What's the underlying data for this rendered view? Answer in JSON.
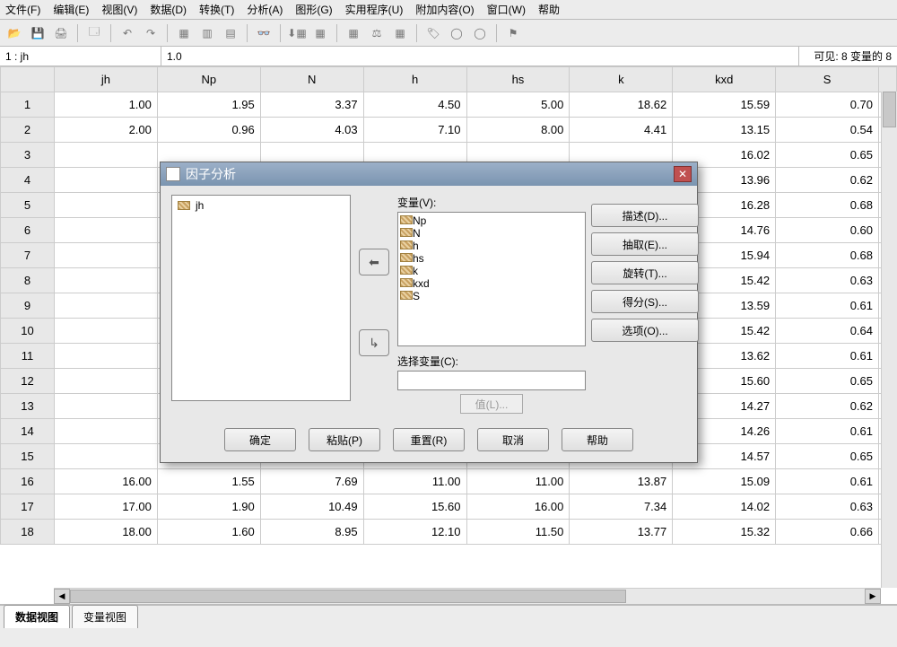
{
  "menu": [
    "文件(F)",
    "编辑(E)",
    "视图(V)",
    "数据(D)",
    "转换(T)",
    "分析(A)",
    "图形(G)",
    "实用程序(U)",
    "附加内容(O)",
    "窗口(W)",
    "帮助"
  ],
  "infobar": {
    "cellref": "1 : jh",
    "cellval": "1.0",
    "visible": "可见: 8 变量的 8"
  },
  "columns": [
    "jh",
    "Np",
    "N",
    "h",
    "hs",
    "k",
    "kxd",
    "S"
  ],
  "col_corner_width": 60,
  "rows": [
    {
      "n": 1,
      "v": [
        "1.00",
        "1.95",
        "3.37",
        "4.50",
        "5.00",
        "18.62",
        "15.59",
        "0.70"
      ]
    },
    {
      "n": 2,
      "v": [
        "2.00",
        "0.96",
        "4.03",
        "7.10",
        "8.00",
        "4.41",
        "13.15",
        "0.54"
      ]
    },
    {
      "n": 3,
      "v": [
        "",
        "",
        "",
        "",
        "",
        "",
        "16.02",
        "0.65"
      ]
    },
    {
      "n": 4,
      "v": [
        "",
        "",
        "",
        "",
        "",
        "",
        "13.96",
        "0.62"
      ]
    },
    {
      "n": 5,
      "v": [
        "",
        "",
        "",
        "",
        "",
        "",
        "16.28",
        "0.68"
      ]
    },
    {
      "n": 6,
      "v": [
        "",
        "",
        "",
        "",
        "",
        "",
        "14.76",
        "0.60"
      ]
    },
    {
      "n": 7,
      "v": [
        "",
        "",
        "",
        "",
        "",
        "",
        "15.94",
        "0.68"
      ]
    },
    {
      "n": 8,
      "v": [
        "",
        "",
        "",
        "",
        "",
        "",
        "15.42",
        "0.63"
      ]
    },
    {
      "n": 9,
      "v": [
        "",
        "",
        "",
        "",
        "",
        "",
        "13.59",
        "0.61"
      ]
    },
    {
      "n": 10,
      "v": [
        "",
        "",
        "",
        "",
        "",
        "",
        "15.42",
        "0.64"
      ]
    },
    {
      "n": 11,
      "v": [
        "",
        "",
        "",
        "",
        "",
        "",
        "13.62",
        "0.61"
      ]
    },
    {
      "n": 12,
      "v": [
        "",
        "",
        "",
        "",
        "",
        "",
        "15.60",
        "0.65"
      ]
    },
    {
      "n": 13,
      "v": [
        "",
        "",
        "",
        "",
        "",
        "",
        "14.27",
        "0.62"
      ]
    },
    {
      "n": 14,
      "v": [
        "",
        "",
        "",
        "",
        "",
        "",
        "14.26",
        "0.61"
      ]
    },
    {
      "n": 15,
      "v": [
        "",
        "",
        "",
        "",
        "",
        "",
        "14.57",
        "0.65"
      ]
    },
    {
      "n": 16,
      "v": [
        "16.00",
        "1.55",
        "7.69",
        "11.00",
        "11.00",
        "13.87",
        "15.09",
        "0.61"
      ]
    },
    {
      "n": 17,
      "v": [
        "17.00",
        "1.90",
        "10.49",
        "15.60",
        "16.00",
        "7.34",
        "14.02",
        "0.63"
      ]
    },
    {
      "n": 18,
      "v": [
        "18.00",
        "1.60",
        "8.95",
        "12.10",
        "11.50",
        "13.77",
        "15.32",
        "0.66"
      ]
    }
  ],
  "tabs": {
    "active": "数据视图",
    "other": "变量视图"
  },
  "dialog": {
    "title": "因子分析",
    "left_items": [
      "jh"
    ],
    "vars_label": "变量(V):",
    "vars_items": [
      "Np",
      "N",
      "h",
      "hs",
      "k",
      "kxd",
      "S"
    ],
    "selectvar_label": "选择变量(C):",
    "selectvar_value": "",
    "value_btn": "值(L)...",
    "side_buttons": [
      "描述(D)...",
      "抽取(E)...",
      "旋转(T)...",
      "得分(S)...",
      "选项(O)..."
    ],
    "footer_buttons": [
      "确定",
      "粘贴(P)",
      "重置(R)",
      "取消",
      "帮助"
    ]
  },
  "colors": {
    "bg": "#ececec",
    "grid_border": "#cccccc",
    "header_bg": "#e8e8e8",
    "dialog_title_start": "#9cb0c8",
    "dialog_title_end": "#7a94b0",
    "close_bg": "#c05050"
  }
}
